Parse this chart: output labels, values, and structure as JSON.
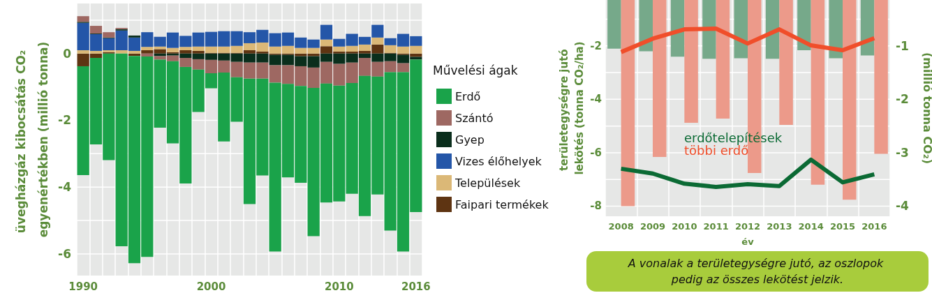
{
  "chart_data": [
    {
      "type": "bar",
      "stacked": true,
      "categories": [
        "1990",
        null,
        null,
        null,
        null,
        null,
        null,
        null,
        null,
        null,
        "2000",
        null,
        null,
        null,
        null,
        null,
        null,
        null,
        null,
        null,
        "2010",
        null,
        null,
        null,
        null,
        null,
        "2016"
      ],
      "series": [
        {
          "name": "Faipari termékek",
          "color": "#5e3412",
          "values": [
            -0.38,
            -0.13,
            0.04,
            null,
            -0.07,
            0.1,
            0.13,
            0.04,
            0.1,
            0.08,
            0.02,
            0.02,
            0.02,
            0.1,
            0.06,
            -0.04,
            -0.04,
            -0.08,
            -0.08,
            0.22,
            0.06,
            0.06,
            0.08,
            0.27,
            0.02,
            -0.04,
            -0.1
          ]
        },
        {
          "name": "Települések",
          "color": "#dbb877",
          "values": [
            0.1,
            0.08,
            0.06,
            0.1,
            0.08,
            0.1,
            0.08,
            0.13,
            0.1,
            0.13,
            0.19,
            0.19,
            0.21,
            0.21,
            0.27,
            0.21,
            0.23,
            0.17,
            0.17,
            0.2,
            0.15,
            0.17,
            0.19,
            0.21,
            0.23,
            0.21,
            0.23
          ]
        },
        {
          "name": "Vizes élőhelyek",
          "color": "#2456a8",
          "values": [
            0.82,
            0.5,
            0.36,
            0.59,
            0.4,
            0.44,
            0.29,
            0.46,
            0.33,
            0.42,
            0.44,
            0.46,
            0.44,
            0.33,
            0.38,
            0.4,
            0.4,
            0.31,
            0.25,
            0.44,
            0.23,
            0.36,
            0.23,
            0.38,
            0.21,
            0.38,
            0.29
          ]
        },
        {
          "name": "Gyep",
          "color": "#0a2e1c",
          "values": [
            0.03,
            0.02,
            0.02,
            0.04,
            0.06,
            0,
            -0.08,
            -0.06,
            -0.13,
            -0.17,
            -0.19,
            -0.21,
            -0.25,
            -0.27,
            -0.27,
            -0.31,
            -0.31,
            -0.3,
            -0.34,
            -0.25,
            -0.31,
            -0.27,
            -0.13,
            -0.25,
            -0.23,
            -0.25,
            -0.08
          ]
        },
        {
          "name": "Szántó",
          "color": "#9e6862",
          "values": [
            0.17,
            0.23,
            0.16,
            0.04,
            0,
            -0.09,
            -0.1,
            -0.17,
            -0.27,
            -0.31,
            -0.4,
            -0.36,
            -0.46,
            -0.48,
            -0.48,
            -0.52,
            -0.56,
            -0.59,
            -0.61,
            -0.65,
            -0.65,
            -0.61,
            -0.54,
            -0.44,
            -0.33,
            -0.27,
            0
          ]
        },
        {
          "name": "Erdő",
          "color": "#1aa34a",
          "values": [
            -3.26,
            -2.59,
            -3.19,
            -5.77,
            -6.21,
            -6.0,
            -2.04,
            -2.46,
            -3.49,
            -1.27,
            -0.45,
            -2.06,
            -1.33,
            -3.76,
            -2.9,
            -5.06,
            -2.8,
            -2.9,
            -4.44,
            -3.56,
            -3.47,
            -3.32,
            -4.2,
            -3.53,
            -4.74,
            -5.37,
            -4.57
          ]
        }
      ],
      "ylim": [
        -6.65,
        1.5
      ],
      "yticks": [
        -6,
        {
          "value": -5,
          "label": null
        },
        -4,
        {
          "value": -3,
          "label": null
        },
        -2,
        {
          "value": -1,
          "label": null
        },
        0,
        {
          "value": 1,
          "label": null
        }
      ],
      "ylabel": "üvegházgáz kibocsátás CO₂ egyenértékben (millió tonna)",
      "legend": "right",
      "legend_title": "Művelési ágak",
      "grid": true
    },
    {
      "type": "bar",
      "categories": [
        "2008",
        "2009",
        "2010",
        "2011",
        "2012",
        "2013",
        "2014",
        "2015",
        "2016"
      ],
      "series": [
        {
          "color": "#76a98a",
          "axis": "y2",
          "values": [
            -1.05,
            -1.1,
            -1.2,
            -1.24,
            -1.23,
            -1.24,
            -1.08,
            -1.23,
            -1.18
          ]
        },
        {
          "color": "#ec9a8a",
          "axis": "y2",
          "values": [
            -4.0,
            -3.08,
            -2.44,
            -2.36,
            -3.38,
            -2.48,
            -3.6,
            -3.88,
            -3.02
          ]
        },
        {
          "type": "line",
          "name": "erdőtelepítések",
          "color": "#0b6a34",
          "values": [
            -6.6,
            -6.78,
            -7.16,
            -7.28,
            -7.18,
            -7.25,
            -6.26,
            -7.11,
            -6.81
          ]
        },
        {
          "type": "line",
          "name": "többi erdő",
          "color": "#f04e2a",
          "values": [
            -2.23,
            -1.73,
            -1.38,
            -1.35,
            -1.91,
            -1.38,
            -1.98,
            -2.16,
            -1.71
          ]
        }
      ],
      "ylim": [
        -8.38,
        -0.28
      ],
      "yticks": [
        -8,
        {
          "value": -7,
          "label": null
        },
        -6,
        {
          "value": -5,
          "label": null
        },
        -4,
        {
          "value": -3,
          "label": null
        },
        -2,
        {
          "value": -1,
          "label": null
        }
      ],
      "y2lim": [
        -4.19,
        -0.14
      ],
      "y2ticks": [
        -4,
        -3,
        -2,
        -1
      ],
      "xlabel": "év",
      "ylabel": "területegységre jutó lekötés (tonna CO₂/ha)",
      "y2label": "(millió tonna CO₂)",
      "legend": "center",
      "grid": true,
      "annotations": [
        "A vonalak a területegységre jutó, az oszlopok pedig az összes lekötést jelzik."
      ]
    }
  ]
}
